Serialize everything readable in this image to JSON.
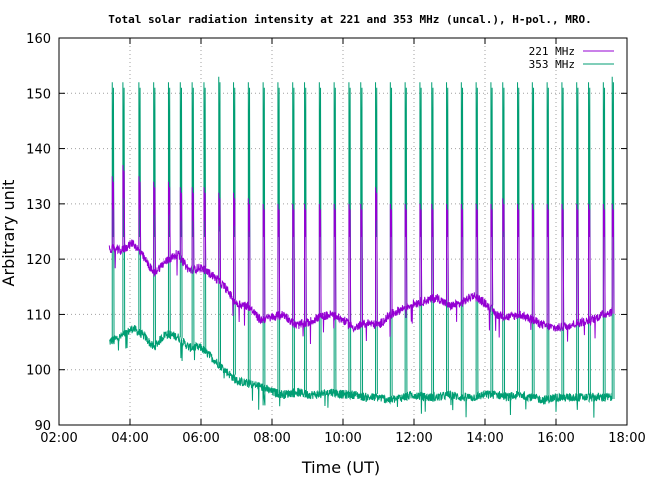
{
  "chart_data": {
    "type": "line",
    "title": "Total solar radiation intensity at 221 and 353 MHz (uncal.), H-pol., MRO.",
    "xlabel": "Time (UT)",
    "ylabel": "Arbitrary unit",
    "xlim": [
      "02:00",
      "18:00"
    ],
    "ylim": [
      90,
      160
    ],
    "x_ticks": [
      "02:00",
      "04:00",
      "06:00",
      "08:00",
      "10:00",
      "12:00",
      "14:00",
      "16:00",
      "18:00"
    ],
    "y_ticks": [
      90,
      100,
      110,
      120,
      130,
      140,
      150,
      160
    ],
    "grid": true,
    "legend_position": "top-right",
    "series": [
      {
        "name": "221 MHz",
        "color": "#9400d3",
        "baseline": [
          [
            "03:25",
            122
          ],
          [
            "03:45",
            121.5
          ],
          [
            "04:05",
            123
          ],
          [
            "04:25",
            120
          ],
          [
            "04:40",
            117.5
          ],
          [
            "05:00",
            119.5
          ],
          [
            "05:20",
            121
          ],
          [
            "05:40",
            118
          ],
          [
            "06:00",
            118.5
          ],
          [
            "06:20",
            117
          ],
          [
            "06:40",
            115
          ],
          [
            "07:00",
            112
          ],
          [
            "07:20",
            111.5
          ],
          [
            "07:40",
            109
          ],
          [
            "08:00",
            109.5
          ],
          [
            "08:20",
            110
          ],
          [
            "08:40",
            108
          ],
          [
            "09:00",
            108.5
          ],
          [
            "09:20",
            109.5
          ],
          [
            "09:40",
            110
          ],
          [
            "10:00",
            109
          ],
          [
            "10:20",
            107.5
          ],
          [
            "10:40",
            108.5
          ],
          [
            "11:00",
            108
          ],
          [
            "11:20",
            110
          ],
          [
            "11:40",
            111
          ],
          [
            "12:00",
            112
          ],
          [
            "12:20",
            112.5
          ],
          [
            "12:40",
            113
          ],
          [
            "13:00",
            111.5
          ],
          [
            "13:20",
            112
          ],
          [
            "13:40",
            113.5
          ],
          [
            "14:00",
            112
          ],
          [
            "14:20",
            110
          ],
          [
            "14:40",
            109.5
          ],
          [
            "15:00",
            110
          ],
          [
            "15:20",
            109
          ],
          [
            "15:40",
            108
          ],
          [
            "16:00",
            107.5
          ],
          [
            "16:20",
            108
          ],
          [
            "16:40",
            108.5
          ],
          [
            "17:00",
            109
          ],
          [
            "17:20",
            110
          ],
          [
            "17:35",
            110.5
          ]
        ],
        "spike_peaks": [
          [
            "03:30",
            135
          ],
          [
            "03:48",
            137
          ],
          [
            "04:15",
            135
          ],
          [
            "04:40",
            134
          ],
          [
            "05:05",
            134
          ],
          [
            "05:25",
            133
          ],
          [
            "05:45",
            133
          ],
          [
            "06:05",
            133
          ],
          [
            "06:30",
            132
          ],
          [
            "06:55",
            132
          ],
          [
            "07:20",
            131
          ],
          [
            "07:45",
            130
          ],
          [
            "08:10",
            130
          ],
          [
            "08:35",
            130
          ],
          [
            "08:55",
            130
          ],
          [
            "09:20",
            130
          ],
          [
            "09:45",
            130
          ],
          [
            "10:10",
            130
          ],
          [
            "10:30",
            130
          ],
          [
            "10:55",
            133
          ],
          [
            "11:20",
            130
          ],
          [
            "11:45",
            130
          ],
          [
            "12:10",
            130
          ],
          [
            "12:30",
            130
          ],
          [
            "12:55",
            130
          ],
          [
            "13:20",
            130
          ],
          [
            "13:45",
            130
          ],
          [
            "14:10",
            130
          ],
          [
            "14:30",
            131
          ],
          [
            "14:55",
            130
          ],
          [
            "15:20",
            130
          ],
          [
            "15:45",
            130
          ],
          [
            "16:10",
            130
          ],
          [
            "16:35",
            130
          ],
          [
            "16:55",
            130
          ],
          [
            "17:20",
            130
          ],
          [
            "17:35",
            130
          ]
        ]
      },
      {
        "name": "353 MHz",
        "color": "#009e73",
        "baseline": [
          [
            "03:25",
            105
          ],
          [
            "03:45",
            106
          ],
          [
            "04:05",
            107.5
          ],
          [
            "04:25",
            106
          ],
          [
            "04:40",
            104
          ],
          [
            "05:00",
            106.5
          ],
          [
            "05:20",
            106
          ],
          [
            "05:40",
            104
          ],
          [
            "06:00",
            104
          ],
          [
            "06:20",
            102
          ],
          [
            "06:40",
            100
          ],
          [
            "07:00",
            98
          ],
          [
            "07:20",
            97.5
          ],
          [
            "07:40",
            97
          ],
          [
            "08:00",
            96
          ],
          [
            "08:20",
            95.5
          ],
          [
            "08:40",
            96
          ],
          [
            "09:00",
            95.5
          ],
          [
            "09:20",
            95.5
          ],
          [
            "09:40",
            96
          ],
          [
            "10:00",
            95.5
          ],
          [
            "10:20",
            95.5
          ],
          [
            "10:40",
            95
          ],
          [
            "11:00",
            95
          ],
          [
            "11:20",
            94.5
          ],
          [
            "11:40",
            95
          ],
          [
            "12:00",
            95.5
          ],
          [
            "12:20",
            95
          ],
          [
            "12:40",
            95
          ],
          [
            "13:00",
            95.5
          ],
          [
            "13:20",
            95
          ],
          [
            "13:40",
            95
          ],
          [
            "14:00",
            95.5
          ],
          [
            "14:20",
            95.5
          ],
          [
            "14:40",
            95
          ],
          [
            "15:00",
            95.5
          ],
          [
            "15:20",
            95
          ],
          [
            "15:40",
            94.5
          ],
          [
            "16:00",
            95
          ],
          [
            "16:20",
            95
          ],
          [
            "16:40",
            95
          ],
          [
            "17:00",
            95
          ],
          [
            "17:20",
            95
          ],
          [
            "17:35",
            95
          ]
        ],
        "spike_peaks": [
          [
            "03:30",
            152
          ],
          [
            "03:48",
            152
          ],
          [
            "04:15",
            152
          ],
          [
            "04:40",
            152
          ],
          [
            "05:05",
            152
          ],
          [
            "05:25",
            152
          ],
          [
            "05:45",
            152
          ],
          [
            "06:05",
            152
          ],
          [
            "06:30",
            153
          ],
          [
            "06:55",
            152
          ],
          [
            "07:20",
            152
          ],
          [
            "07:45",
            152
          ],
          [
            "08:10",
            152
          ],
          [
            "08:35",
            152
          ],
          [
            "08:55",
            152
          ],
          [
            "09:20",
            152
          ],
          [
            "09:45",
            152
          ],
          [
            "10:10",
            152
          ],
          [
            "10:30",
            152
          ],
          [
            "10:55",
            152
          ],
          [
            "11:20",
            152
          ],
          [
            "11:45",
            152
          ],
          [
            "12:10",
            152
          ],
          [
            "12:30",
            152
          ],
          [
            "12:55",
            152
          ],
          [
            "13:20",
            152
          ],
          [
            "13:45",
            152
          ],
          [
            "14:10",
            152
          ],
          [
            "14:30",
            152
          ],
          [
            "14:55",
            152
          ],
          [
            "15:20",
            152
          ],
          [
            "15:45",
            152
          ],
          [
            "16:10",
            152
          ],
          [
            "16:35",
            152
          ],
          [
            "16:55",
            152
          ],
          [
            "17:20",
            152
          ],
          [
            "17:35",
            153
          ]
        ]
      }
    ]
  }
}
